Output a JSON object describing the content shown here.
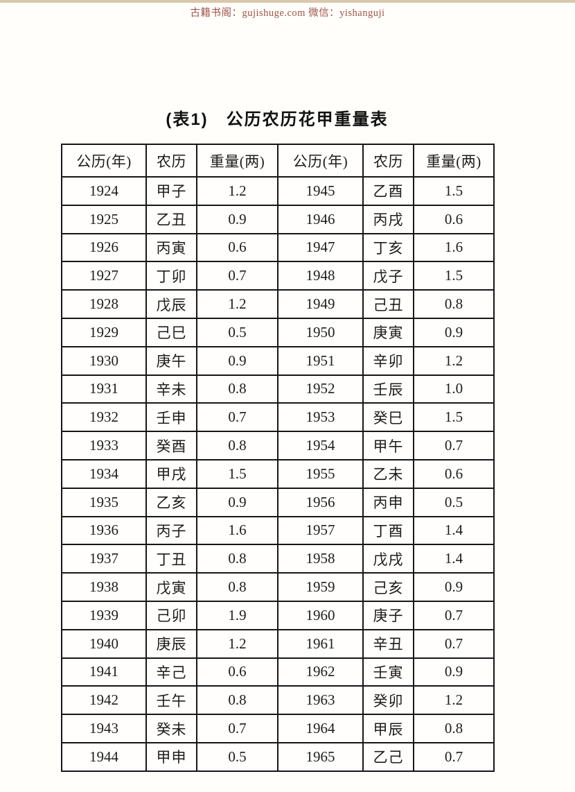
{
  "watermark": {
    "text": "古籍书阁：gujishuge.com 微信：yishanguji",
    "color": "#9b5248"
  },
  "title": {
    "label_prefix": "(表1)",
    "label_main": "公历农历花甲重量表"
  },
  "table": {
    "headers": [
      "公历(年)",
      "农历",
      "重量(两)",
      "公历(年)",
      "农历",
      "重量(两)"
    ],
    "rows": [
      [
        "1924",
        "甲子",
        "1.2",
        "1945",
        "乙酉",
        "1.5"
      ],
      [
        "1925",
        "乙丑",
        "0.9",
        "1946",
        "丙戌",
        "0.6"
      ],
      [
        "1926",
        "丙寅",
        "0.6",
        "1947",
        "丁亥",
        "1.6"
      ],
      [
        "1927",
        "丁卯",
        "0.7",
        "1948",
        "戊子",
        "1.5"
      ],
      [
        "1928",
        "戊辰",
        "1.2",
        "1949",
        "己丑",
        "0.8"
      ],
      [
        "1929",
        "己巳",
        "0.5",
        "1950",
        "庚寅",
        "0.9"
      ],
      [
        "1930",
        "庚午",
        "0.9",
        "1951",
        "辛卯",
        "1.2"
      ],
      [
        "1931",
        "辛未",
        "0.8",
        "1952",
        "壬辰",
        "1.0"
      ],
      [
        "1932",
        "壬申",
        "0.7",
        "1953",
        "癸巳",
        "1.5"
      ],
      [
        "1933",
        "癸酉",
        "0.8",
        "1954",
        "甲午",
        "0.7"
      ],
      [
        "1934",
        "甲戌",
        "1.5",
        "1955",
        "乙未",
        "0.6"
      ],
      [
        "1935",
        "乙亥",
        "0.9",
        "1956",
        "丙申",
        "0.5"
      ],
      [
        "1936",
        "丙子",
        "1.6",
        "1957",
        "丁酉",
        "1.4"
      ],
      [
        "1937",
        "丁丑",
        "0.8",
        "1958",
        "戊戌",
        "1.4"
      ],
      [
        "1938",
        "戊寅",
        "0.8",
        "1959",
        "己亥",
        "0.9"
      ],
      [
        "1939",
        "己卯",
        "1.9",
        "1960",
        "庚子",
        "0.7"
      ],
      [
        "1940",
        "庚辰",
        "1.2",
        "1961",
        "辛丑",
        "0.7"
      ],
      [
        "1941",
        "辛己",
        "0.6",
        "1962",
        "壬寅",
        "0.9"
      ],
      [
        "1942",
        "壬午",
        "0.8",
        "1963",
        "癸卯",
        "1.2"
      ],
      [
        "1943",
        "癸未",
        "0.7",
        "1964",
        "甲辰",
        "0.8"
      ],
      [
        "1944",
        "甲申",
        "0.5",
        "1965",
        "乙己",
        "0.7"
      ]
    ]
  },
  "colors": {
    "page_background": "#fffefb",
    "top_strip": "#d8c8ae",
    "table_border": "#161616",
    "text": "#1c1c1c",
    "watermark_red": "#9b5248"
  }
}
